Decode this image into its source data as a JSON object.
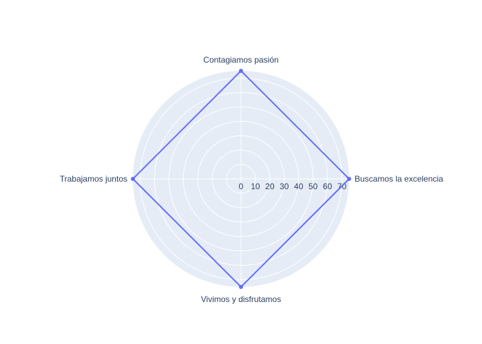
{
  "chart_data": {
    "type": "radar",
    "categories": [
      "Buscamos la excelencia",
      "Contagiamos pasión",
      "Trabajamos juntos",
      "Vivimos y disfrutamos"
    ],
    "series": [
      {
        "values": [
          75,
          75,
          75,
          75
        ],
        "color": "#636efa"
      }
    ],
    "radial_range": [
      0,
      75
    ],
    "radial_ticks": [
      0,
      10,
      20,
      30,
      40,
      50,
      60,
      70
    ],
    "radial_tick_labels": [
      "0",
      "10",
      "20",
      "30",
      "40",
      "50",
      "60",
      "70"
    ],
    "angular_direction": "counterclockwise",
    "angular_rotation_deg": 0,
    "grid": true,
    "legend": false,
    "colors": {
      "polar_background": "#e5ecf6",
      "grid_line": "#ffffff",
      "text": "#2a3f5f",
      "series": "#636efa"
    }
  }
}
